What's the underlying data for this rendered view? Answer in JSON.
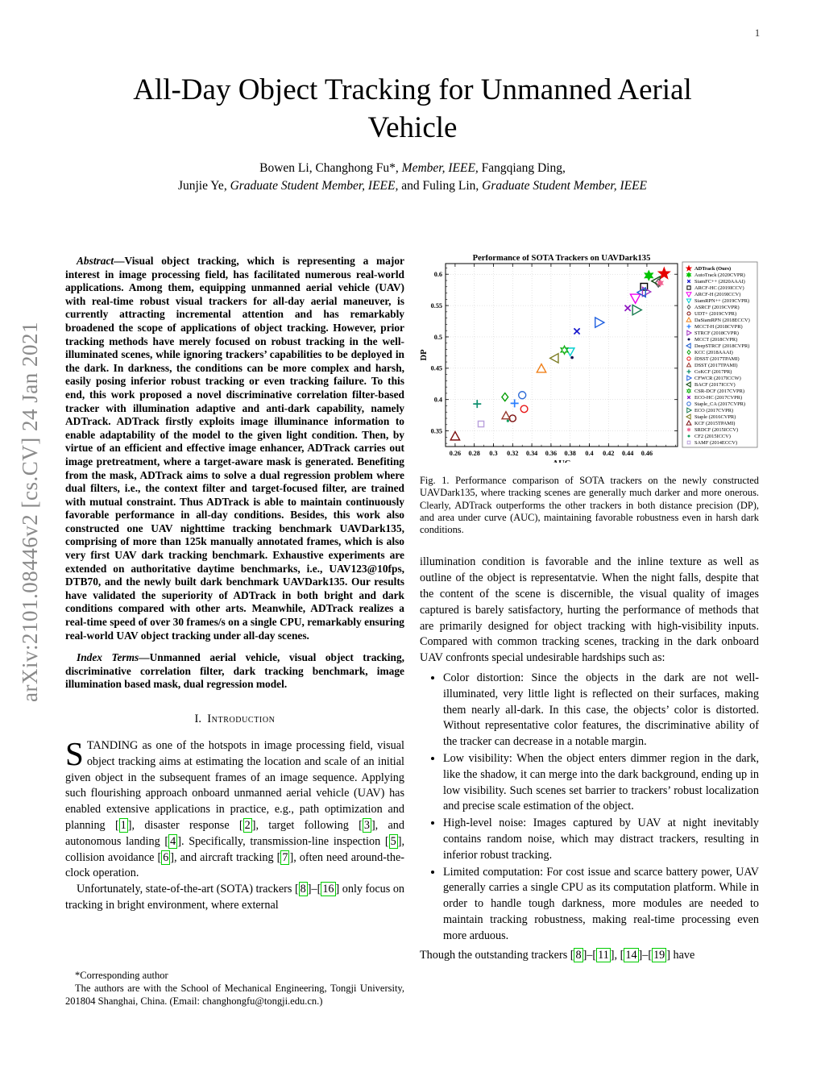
{
  "page_number": "1",
  "watermark": "arXiv:2101.08446v2 [cs.CV] 24 Jan 2021",
  "title": {
    "line1": "All-Day Object Tracking for Unmanned Aerial",
    "line2": "Vehicle"
  },
  "authors": {
    "line1": [
      {
        "t": "Bowen Li, Changhong Fu*, "
      },
      {
        "t": "Member, IEEE,",
        "i": true
      },
      {
        "t": " Fangqiang Ding,"
      }
    ],
    "line2": [
      {
        "t": "Junjie Ye, "
      },
      {
        "t": "Graduate Student Member, IEEE,",
        "i": true
      },
      {
        "t": " and Fuling Lin, "
      },
      {
        "t": "Graduate Student Member, IEEE",
        "i": true
      }
    ]
  },
  "abstract": {
    "lead": "Abstract",
    "text": "—Visual object tracking, which is representing a major interest in image processing field, has facilitated numerous real-world applications. Among them, equipping unmanned aerial vehicle (UAV) with real-time robust visual trackers for all-day aerial maneuver, is currently attracting incremental attention and has remarkably broadened the scope of applications of object tracking. However, prior tracking methods have merely focused on robust tracking in the well-illuminated scenes, while ignoring trackers’ capabilities to be deployed in the dark. In darkness, the conditions can be more complex and harsh, easily posing inferior robust tracking or even tracking failure. To this end, this work proposed a novel discriminative correlation filter-based tracker with illumination adaptive and anti-dark capability, namely ADTrack. ADTrack firstly exploits image illuminance information to enable adaptability of the model to the given light condition. Then, by virtue of an efficient and effective image enhancer, ADTrack carries out image pretreatment, where a target-aware mask is generated. Benefiting from the mask, ADTrack aims to solve a dual regression problem where dual filters, i.e., the context filter and target-focused filter, are trained with mutual constraint. Thus ADTrack is able to maintain continuously favorable performance in all-day conditions. Besides, this work also constructed one UAV nighttime tracking benchmark UAVDark135, comprising of more than 125k manually annotated frames, which is also very first UAV dark tracking benchmark. Exhaustive experiments are extended on authoritative daytime benchmarks, i.e., UAV123@10fps, DTB70, and the newly built dark benchmark UAVDark135. Our results have validated the superiority of ADTrack in both bright and dark conditions compared with other arts. Meanwhile, ADTrack realizes a real-time speed of over 30 frames/s on a single CPU, remarkably ensuring real-world UAV object tracking under all-day scenes."
  },
  "index_terms": {
    "lead": "Index Terms",
    "text": "—Unmanned aerial vehicle, visual object tracking, discriminative correlation filter, dark tracking benchmark, image illumination based mask, dual regression model."
  },
  "intro": {
    "heading_num": "I.",
    "heading_text": "Introduction",
    "p1_dropcap": "S",
    "p1": "TANDING as one of the hotspots in image processing field, visual object tracking aims at estimating the location and scale of an initial given object in the subsequent frames of an image sequence. Applying such flourishing approach onboard unmanned aerial vehicle (UAV) has enabled extensive applications in practice, e.g., path optimization and planning [1], disaster response [2], target following [3], and autonomous landing [4]. Specifically, transmission-line inspection [5], collision avoidance [6], and aircraft tracking [7], often need around-the-clock operation.",
    "p2": "Unfortunately, state-of-the-art (SOTA) trackers [8]–[16] only focus on tracking in bright environment, where external"
  },
  "footnote": {
    "line1": "*Corresponding author",
    "line2": "The authors are with the School of Mechanical Engineering, Tongji University, 201804 Shanghai, China. (Email: changhongfu@tongji.edu.cn.)"
  },
  "figure_caption": "Fig. 1.  Performance comparison of SOTA trackers on the newly constructed UAVDark135, where tracking scenes are generally much darker and more onerous. Clearly, ADTrack outperforms the other trackers in both distance precision (DP), and area under curve (AUC), maintaining favorable robustness even in harsh dark conditions.",
  "right_column": {
    "p1": "illumination condition is favorable and the inline texture as well as outline of the object is representatvie. When the night falls, despite that the content of the scene is discernible, the visual quality of images captured is barely satisfactory, hurting the performance of methods that are primarily designed for object tracking with high-visibility inputs. Compared with common tracking scenes, tracking in the dark onboard UAV confronts special undesirable hardships such as:",
    "bullets": [
      "Color distortion: Since the objects in the dark are not well-illuminated, very little light is reflected on their surfaces, making them nearly all-dark. In this case, the objects’ color is distorted. Without representative color features, the discriminative ability of the tracker can decrease in a notable margin.",
      "Low visibility: When the object enters dimmer region in the dark, like the shadow, it can merge into the dark background, ending up in low visibility. Such scenes set barrier to trackers’ robust localization and precise scale estimation of the object.",
      "High-level noise: Images captured by UAV at night inevitably contains random noise, which may distract trackers, resulting in inferior robust tracking.",
      "Limited computation: For cost issue and scarce battery power, UAV generally carries a single CPU as its computation platform. While in order to handle tough darkness, more modules are needed to maintain tracking robustness, making real-time processing even more arduous."
    ],
    "p2": "Though the outstanding trackers [8]–[11], [14]–[19] have"
  },
  "chart_data": {
    "type": "scatter",
    "title": "Performance of SOTA Trackers on UAVDark135",
    "xlabel": "AUC",
    "ylabel": "DP",
    "xlim": [
      0.25,
      0.492
    ],
    "ylim": [
      0.325,
      0.617
    ],
    "x_ticks": [
      0.26,
      0.28,
      0.3,
      0.32,
      0.34,
      0.36,
      0.38,
      0.4,
      0.42,
      0.44,
      0.46
    ],
    "x_tick_labels": [
      "0.26",
      "0.28",
      "0.3",
      "0.32",
      "0.34",
      "0.36",
      "0.38",
      "0.4",
      "0.42",
      "0.44",
      "0.46"
    ],
    "y_ticks": [
      0.35,
      0.4,
      0.45,
      0.5,
      0.55,
      0.6
    ],
    "y_tick_labels": [
      "0.35",
      "0.4",
      "0.45",
      "0.5",
      "0.55",
      "0.6"
    ],
    "grid": true,
    "legend_position": "right-outside",
    "series": [
      {
        "name": "ADTrack (Ours)",
        "marker": "star",
        "color": "#e50000",
        "fill": true,
        "auc": 0.478,
        "dp": 0.601,
        "size": 7,
        "bold": true
      },
      {
        "name": "AutoTrack (2020CVPR)",
        "marker": "hexagram",
        "color": "#00c300",
        "fill": true,
        "auc": 0.462,
        "dp": 0.598,
        "size": 5.5
      },
      {
        "name": "SiamFC++ (2020AAAI)",
        "marker": "x",
        "color": "#1414cc",
        "fill": false,
        "auc": 0.387,
        "dp": 0.509,
        "size": 4.5
      },
      {
        "name": "ARCF-HC (2019ICCV)",
        "marker": "square",
        "color": "#000000",
        "fill": false,
        "auc": 0.457,
        "dp": 0.58,
        "size": 5
      },
      {
        "name": "ARCF-H (2019ICCV)",
        "marker": "triangle-down",
        "color": "#f000f0",
        "fill": false,
        "auc": 0.448,
        "dp": 0.562,
        "size": 6.5
      },
      {
        "name": "SiamRPN++ (2019CVPR)",
        "marker": "triangle-down",
        "color": "#00cfcf",
        "fill": false,
        "auc": 0.38,
        "dp": 0.477,
        "size": 5.5
      },
      {
        "name": "ASRCF (2019CVPR)",
        "marker": "diamond",
        "color": "#5a5a5a",
        "fill": false,
        "auc": 0.472,
        "dp": 0.586,
        "size": 5
      },
      {
        "name": "UDT+ (2019CVPR)",
        "marker": "circle",
        "color": "#7a0c0c",
        "fill": false,
        "auc": 0.32,
        "dp": 0.37,
        "size": 4.5
      },
      {
        "name": "DaSiamRPN (2018ECCV)",
        "marker": "triangle-up",
        "color": "#f08019",
        "fill": false,
        "auc": 0.35,
        "dp": 0.449,
        "size": 6
      },
      {
        "name": "MCCT-H (2018CVPR)",
        "marker": "plus",
        "color": "#2a7fff",
        "fill": false,
        "auc": 0.322,
        "dp": 0.394,
        "size": 5
      },
      {
        "name": "STRCF (2018CVPR)",
        "marker": "triangle-right",
        "color": "#a033c2",
        "fill": false,
        "auc": 0.459,
        "dp": 0.572,
        "size": 6
      },
      {
        "name": "MCCT (2018CVPR)",
        "marker": "dot",
        "color": "#10104f",
        "fill": true,
        "auc": 0.382,
        "dp": 0.467,
        "size": 1.8
      },
      {
        "name": "DeepSTRCF (2018CVPR)",
        "marker": "triangle-left",
        "color": "#1f5fd0",
        "fill": false,
        "auc": 0.455,
        "dp": 0.571,
        "size": 6
      },
      {
        "name": "KCC (2018AAAI)",
        "marker": "diamond",
        "color": "#089f08",
        "fill": false,
        "auc": 0.312,
        "dp": 0.404,
        "size": 5
      },
      {
        "name": "fDSST (2017TPAMI)",
        "marker": "circle",
        "color": "#e81414",
        "fill": false,
        "auc": 0.332,
        "dp": 0.385,
        "size": 4.8
      },
      {
        "name": "DSST (2017TPAMI)",
        "marker": "triangle-up",
        "color": "#96392e",
        "fill": false,
        "auc": 0.313,
        "dp": 0.374,
        "size": 5.2
      },
      {
        "name": "CoKCF (2017PR)",
        "marker": "plus",
        "color": "#0e8f6e",
        "fill": false,
        "auc": 0.283,
        "dp": 0.393,
        "size": 5
      },
      {
        "name": "CFWCR (2017ICCW)",
        "marker": "triangle-right",
        "color": "#2060e0",
        "fill": false,
        "auc": 0.41,
        "dp": 0.523,
        "size": 6.5
      },
      {
        "name": "BACF (2017ICCV)",
        "marker": "triangle-left",
        "color": "#104a10",
        "fill": false,
        "auc": 0.47,
        "dp": 0.589,
        "size": 6
      },
      {
        "name": "CSR-DCF (2017CVPR)",
        "marker": "hexagram",
        "color": "#16b116",
        "fill": false,
        "auc": 0.374,
        "dp": 0.479,
        "size": 5
      },
      {
        "name": "ECO-HC (2017CVPR)",
        "marker": "x",
        "color": "#8a10c0",
        "fill": false,
        "auc": 0.44,
        "dp": 0.546,
        "size": 4.5
      },
      {
        "name": "Staple_CA (2017CVPR)",
        "marker": "circle",
        "color": "#2e6bd6",
        "fill": false,
        "auc": 0.33,
        "dp": 0.407,
        "size": 5
      },
      {
        "name": "ECO (2017CVPR)",
        "marker": "triangle-right",
        "color": "#157a4e",
        "fill": false,
        "auc": 0.449,
        "dp": 0.543,
        "size": 6.5
      },
      {
        "name": "Staple (2016CVPR)",
        "marker": "triangle-left",
        "color": "#7d7d24",
        "fill": false,
        "auc": 0.364,
        "dp": 0.466,
        "size": 6
      },
      {
        "name": "KCF (2015TPAMI)",
        "marker": "triangle-up",
        "color": "#7c1010",
        "fill": false,
        "auc": 0.26,
        "dp": 0.341,
        "size": 6
      },
      {
        "name": "SRDCF (2015ICCV)",
        "marker": "hexagram",
        "color": "#f06292",
        "fill": true,
        "auc": 0.474,
        "dp": 0.586,
        "size": 3.5
      },
      {
        "name": "CF2 (2015ICCV)",
        "marker": "dot",
        "color": "#0f9f5f",
        "fill": true,
        "auc": 0.315,
        "dp": 0.366,
        "size": 1.6
      },
      {
        "name": "SAMF (2014ECCV)",
        "marker": "square",
        "color": "#b9a0dc",
        "fill": false,
        "auc": 0.287,
        "dp": 0.361,
        "size": 4.2
      }
    ]
  }
}
